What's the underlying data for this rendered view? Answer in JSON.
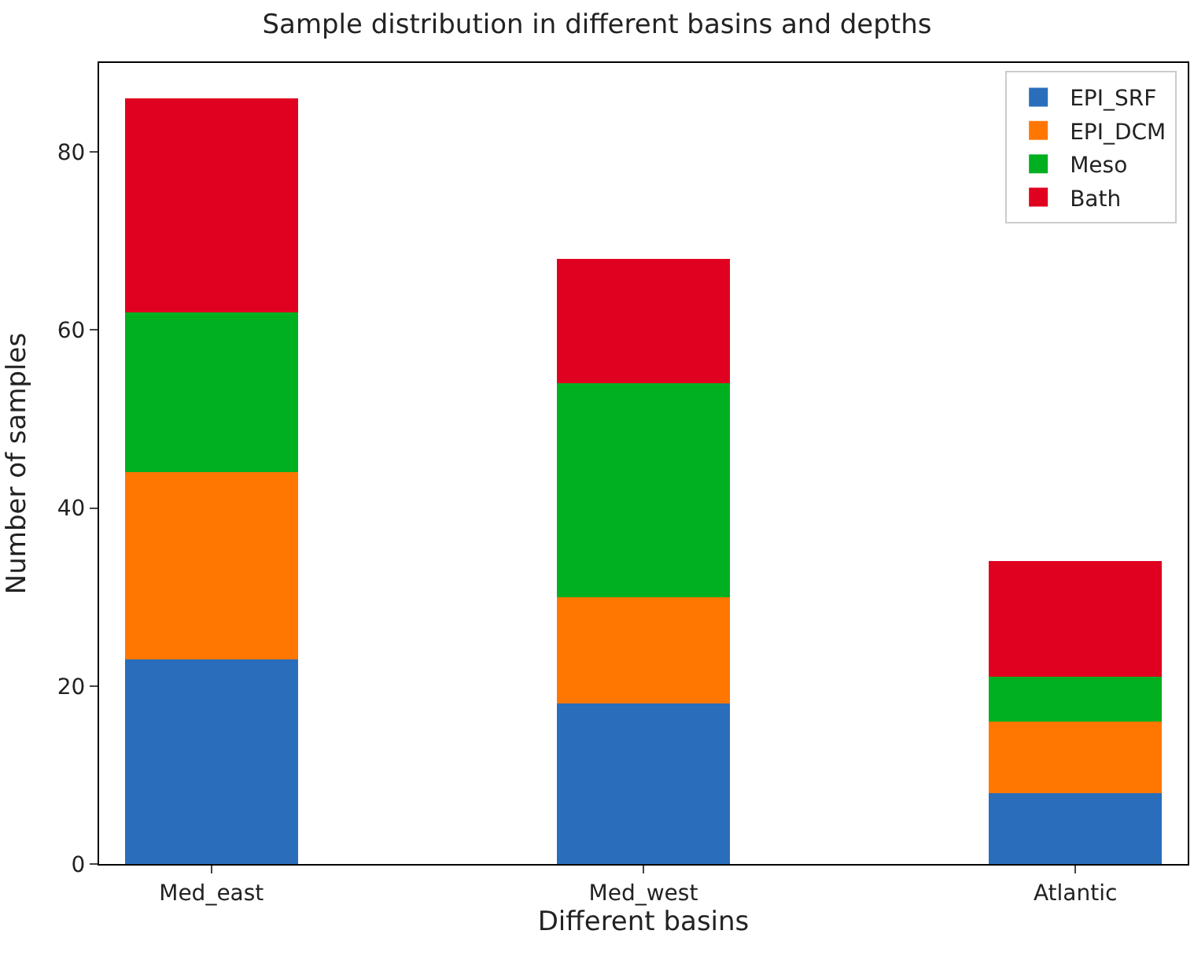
{
  "chart_data": {
    "type": "bar",
    "stacked": true,
    "title": "Sample distribution in different basins and depths",
    "xlabel": "Different basins",
    "ylabel": "Number of samples",
    "categories": [
      "Med_east",
      "Med_west",
      "Atlantic"
    ],
    "series": [
      {
        "name": "EPI_SRF",
        "color": "#2a6ebb",
        "values": [
          23,
          18,
          8
        ]
      },
      {
        "name": "EPI_DCM",
        "color": "#ff7700",
        "values": [
          21,
          12,
          8
        ]
      },
      {
        "name": "Meso",
        "color": "#00b020",
        "values": [
          18,
          24,
          5
        ]
      },
      {
        "name": "Bath",
        "color": "#e00020",
        "values": [
          24,
          14,
          13
        ]
      }
    ],
    "ylim": [
      0,
      90
    ],
    "yticks": [
      0,
      20,
      40,
      60,
      80
    ],
    "legend": "top right"
  }
}
